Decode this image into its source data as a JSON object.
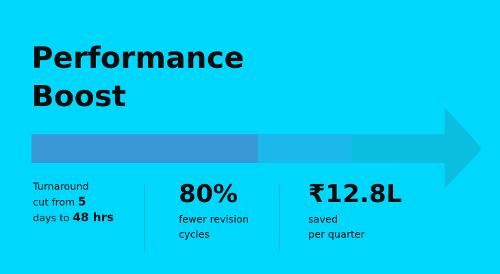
{
  "title_line1": "Performance",
  "title_line2": "Boost",
  "colors": {
    "background": "#00d7fd",
    "arrow_segment_1": "#3a98d6",
    "arrow_segment_2": "#1cb8ec",
    "arrow_segment_3": "#0cbfe0",
    "arrow_head": "#0cbfe0"
  },
  "stats": [
    {
      "line1": "Turnaround",
      "line2_prefix": "cut from ",
      "line2_bold": "5",
      "line3_prefix": "days to ",
      "line3_bold": "48 hrs"
    },
    {
      "value": "80%",
      "line1": "fewer revision",
      "line2": "cycles"
    },
    {
      "value": "₹12.8L",
      "line1": "saved",
      "line2": "per quarter"
    }
  ]
}
